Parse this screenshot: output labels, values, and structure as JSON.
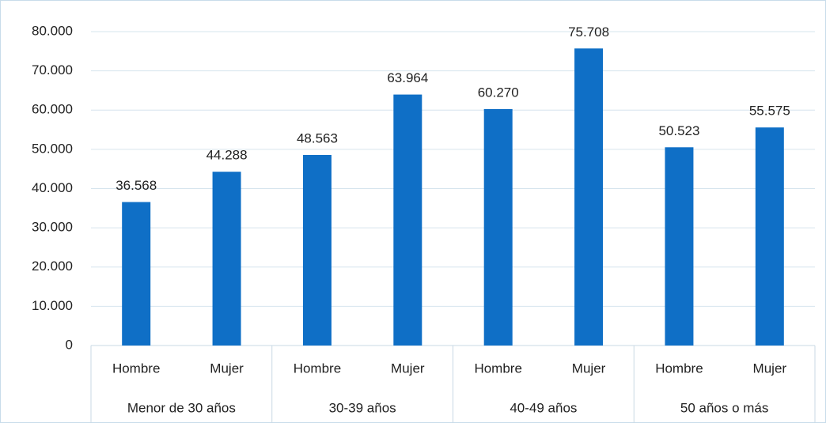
{
  "chart_data": {
    "type": "bar",
    "groups": [
      {
        "name": "Menor de 30 años",
        "categories": [
          "Hombre",
          "Mujer"
        ]
      },
      {
        "name": "30-39 años",
        "categories": [
          "Hombre",
          "Mujer"
        ]
      },
      {
        "name": "40-49 años",
        "categories": [
          "Hombre",
          "Mujer"
        ]
      },
      {
        "name": "50 años o más",
        "categories": [
          "Hombre",
          "Mujer"
        ]
      }
    ],
    "values": [
      36568,
      44288,
      48563,
      63964,
      60270,
      75708,
      50523,
      55575
    ],
    "value_labels": [
      "36.568",
      "44.288",
      "48.563",
      "63.964",
      "60.270",
      "75.708",
      "50.523",
      "55.575"
    ],
    "color": "#0f6fc6",
    "ylim": [
      0,
      80000
    ],
    "yticks": [
      0,
      {
        "value": 10000,
        "label": "10.000"
      },
      {
        "value": 20000,
        "label": "20.000"
      },
      {
        "value": 30000,
        "label": "30.000"
      },
      {
        "value": 40000,
        "label": "40.000"
      },
      {
        "value": 50000,
        "label": "50.000"
      },
      {
        "value": 60000,
        "label": "60.000"
      },
      {
        "value": 70000,
        "label": "70.000"
      },
      {
        "value": 80000,
        "label": "80.000"
      }
    ],
    "grid": true
  }
}
